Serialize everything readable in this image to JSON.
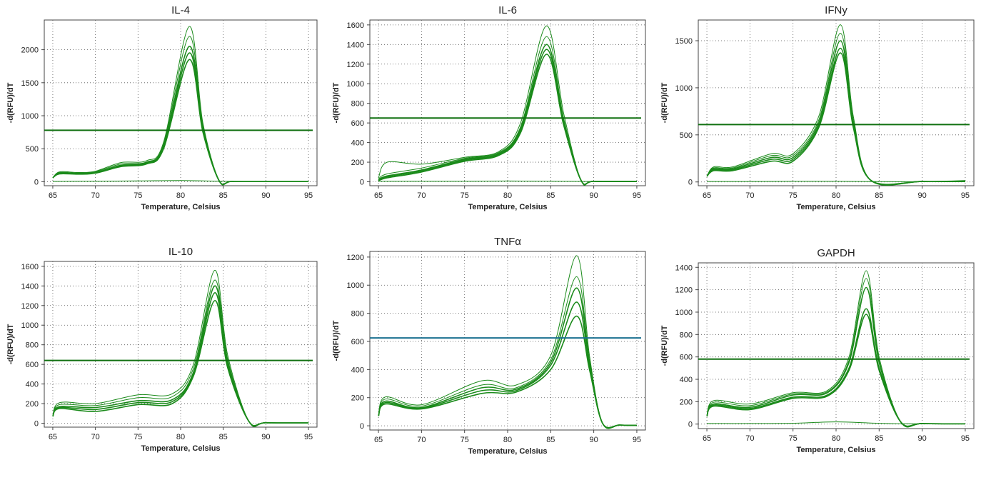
{
  "chart_data": [
    {
      "type": "line",
      "title": "IL-4",
      "xlabel": "Temperature, Celsius",
      "ylabel": "-d(RFU)/dT",
      "xlim": [
        64,
        96
      ],
      "ylim": [
        -60,
        2450
      ],
      "xticks": [
        65,
        70,
        75,
        80,
        85,
        90,
        95
      ],
      "yticks": [
        0,
        500,
        1000,
        1500,
        2000
      ],
      "grid": true,
      "threshold": {
        "value": 780,
        "color": "#107010"
      },
      "line_color": "#1a8a1a",
      "baseline_trace": {
        "x": [
          65,
          70,
          75,
          80,
          85,
          90,
          95
        ],
        "y": [
          5,
          8,
          12,
          18,
          8,
          3,
          2
        ]
      },
      "series": [
        {
          "peak_x": 81.0,
          "values": [
            60,
            150,
            140,
            160,
            290,
            320,
            600,
            2350,
            900,
            20,
            5,
            3,
            3
          ]
        },
        {
          "peak_x": 81.0,
          "values": [
            60,
            140,
            130,
            150,
            270,
            300,
            570,
            2200,
            860,
            20,
            5,
            3,
            3
          ]
        },
        {
          "peak_x": 81.0,
          "values": [
            60,
            130,
            125,
            140,
            250,
            290,
            540,
            2050,
            820,
            20,
            5,
            3,
            3
          ]
        },
        {
          "peak_x": 81.0,
          "values": [
            60,
            125,
            120,
            135,
            240,
            280,
            520,
            1950,
            790,
            20,
            5,
            3,
            3
          ]
        },
        {
          "peak_x": 81.0,
          "values": [
            60,
            120,
            115,
            130,
            230,
            270,
            500,
            1850,
            760,
            20,
            5,
            3,
            3
          ]
        }
      ],
      "x_points": [
        65,
        65.8,
        68,
        70,
        73,
        76,
        78,
        81,
        82.6,
        84.5,
        86,
        90,
        95
      ]
    },
    {
      "type": "line",
      "title": "IL-6",
      "xlabel": "Temperature, Celsius",
      "ylabel": "-d(RFU)/dT",
      "xlim": [
        64,
        96
      ],
      "ylim": [
        -40,
        1650
      ],
      "xticks": [
        65,
        70,
        75,
        80,
        85,
        90,
        95
      ],
      "yticks": [
        0,
        200,
        400,
        600,
        800,
        1000,
        1200,
        1400,
        1600
      ],
      "grid": true,
      "threshold": {
        "value": 650,
        "color": "#107010"
      },
      "line_color": "#1a8a1a",
      "baseline_trace": {
        "x": [
          65,
          70,
          75,
          80,
          85,
          90,
          95
        ],
        "y": [
          5,
          5,
          6,
          8,
          6,
          3,
          2
        ]
      },
      "series": [
        {
          "peak_x": 84.5,
          "values": [
            40,
            200,
            180,
            250,
            310,
            600,
            1590,
            700,
            20,
            5,
            3
          ]
        },
        {
          "peak_x": 84.5,
          "values": [
            30,
            80,
            140,
            240,
            300,
            560,
            1480,
            650,
            20,
            5,
            3
          ]
        },
        {
          "peak_x": 84.5,
          "values": [
            20,
            60,
            120,
            230,
            290,
            540,
            1400,
            620,
            20,
            5,
            3
          ]
        },
        {
          "peak_x": 84.5,
          "values": [
            15,
            50,
            110,
            220,
            280,
            520,
            1350,
            600,
            20,
            5,
            3
          ]
        },
        {
          "peak_x": 84.5,
          "values": [
            10,
            40,
            100,
            210,
            270,
            500,
            1300,
            580,
            20,
            5,
            3
          ]
        }
      ],
      "x_points": [
        65,
        66,
        70,
        75,
        79,
        81.5,
        84.5,
        86.5,
        88.5,
        90,
        95
      ]
    },
    {
      "type": "line",
      "title": "IFNy",
      "xlabel": "Temperature, Celsius",
      "ylabel": "-d(RFU)/dT",
      "xlim": [
        64,
        96
      ],
      "ylim": [
        -40,
        1720
      ],
      "xticks": [
        65,
        70,
        75,
        80,
        85,
        90,
        95
      ],
      "yticks": [
        0,
        500,
        1000,
        1500
      ],
      "grid": true,
      "threshold": {
        "value": 610,
        "color": "#107010"
      },
      "line_color": "#1a8a1a",
      "baseline_trace": {
        "x": [
          65,
          70,
          75,
          80,
          85,
          90,
          95
        ],
        "y": [
          5,
          5,
          6,
          6,
          4,
          3,
          10
        ]
      },
      "series": [
        {
          "peak_x": 80.5,
          "values": [
            60,
            160,
            160,
            300,
            300,
            700,
            1670,
            700,
            20,
            5,
            15
          ]
        },
        {
          "peak_x": 80.5,
          "values": [
            60,
            150,
            150,
            280,
            280,
            660,
            1580,
            660,
            20,
            5,
            10
          ]
        },
        {
          "peak_x": 80.5,
          "values": [
            60,
            140,
            140,
            260,
            260,
            630,
            1500,
            630,
            20,
            5,
            8
          ]
        },
        {
          "peak_x": 80.5,
          "values": [
            60,
            130,
            130,
            240,
            240,
            600,
            1420,
            600,
            20,
            5,
            5
          ]
        },
        {
          "peak_x": 80.5,
          "values": [
            60,
            120,
            120,
            220,
            220,
            580,
            1370,
            580,
            20,
            5,
            5
          ]
        }
      ],
      "x_points": [
        65,
        65.8,
        68,
        72.5,
        75,
        78,
        80.5,
        82,
        84,
        90,
        95
      ]
    },
    {
      "type": "line",
      "title": "IL-10",
      "xlabel": "Temperature, Celsius",
      "ylabel": "-d(RFU)/dT",
      "xlim": [
        64,
        96
      ],
      "ylim": [
        -40,
        1650
      ],
      "xticks": [
        65,
        70,
        75,
        80,
        85,
        90,
        95
      ],
      "yticks": [
        0,
        200,
        400,
        600,
        800,
        1000,
        1200,
        1400,
        1600
      ],
      "grid": true,
      "threshold": {
        "value": 640,
        "color": "#107010"
      },
      "line_color": "#1a8a1a",
      "baseline_trace": null,
      "series": [
        {
          "peak_x": 84.0,
          "values": [
            70,
            210,
            200,
            290,
            300,
            600,
            1560,
            700,
            20,
            5,
            3
          ]
        },
        {
          "peak_x": 84.0,
          "values": [
            70,
            190,
            180,
            260,
            270,
            560,
            1460,
            660,
            20,
            5,
            3
          ]
        },
        {
          "peak_x": 84.0,
          "values": [
            70,
            170,
            160,
            230,
            240,
            520,
            1400,
            630,
            20,
            5,
            3
          ]
        },
        {
          "peak_x": 84.0,
          "values": [
            70,
            160,
            140,
            210,
            220,
            500,
            1330,
            600,
            20,
            5,
            3
          ]
        },
        {
          "peak_x": 84.0,
          "values": [
            70,
            150,
            120,
            190,
            200,
            480,
            1250,
            570,
            20,
            5,
            3
          ]
        }
      ],
      "x_points": [
        65,
        65.8,
        70,
        75,
        79,
        81.5,
        84,
        85.5,
        88,
        90,
        95
      ]
    },
    {
      "type": "line",
      "title": "TNFα",
      "xlabel": "Temperature, Celsius",
      "ylabel": "-d(RFU)/dT",
      "xlim": [
        64,
        96
      ],
      "ylim": [
        -30,
        1240
      ],
      "xticks": [
        65,
        70,
        75,
        80,
        85,
        90,
        95
      ],
      "yticks": [
        0,
        200,
        400,
        600,
        800,
        1000,
        1200
      ],
      "grid": true,
      "threshold": {
        "value": 625,
        "color": "#1a7090"
      },
      "line_color": "#1a8a1a",
      "baseline_trace": null,
      "series": [
        {
          "peak_x": 88.0,
          "values": [
            70,
            205,
            150,
            320,
            290,
            500,
            1210,
            500,
            20,
            5,
            3
          ]
        },
        {
          "peak_x": 88.0,
          "values": [
            70,
            190,
            140,
            290,
            270,
            470,
            1060,
            470,
            20,
            5,
            3
          ]
        },
        {
          "peak_x": 88.0,
          "values": [
            70,
            175,
            130,
            270,
            260,
            450,
            980,
            450,
            20,
            5,
            3
          ]
        },
        {
          "peak_x": 88.0,
          "values": [
            70,
            165,
            125,
            250,
            250,
            430,
            880,
            430,
            20,
            5,
            3
          ]
        },
        {
          "peak_x": 88.0,
          "values": [
            70,
            155,
            120,
            230,
            240,
            400,
            780,
            400,
            20,
            5,
            3
          ]
        }
      ],
      "x_points": [
        65,
        65.8,
        70,
        77,
        81,
        85,
        88,
        89.5,
        91,
        93,
        95
      ]
    },
    {
      "type": "line",
      "title": "GAPDH",
      "xlabel": "Temperature, Celsius",
      "ylabel": "-d(RFU)/dT",
      "xlim": [
        64,
        96
      ],
      "ylim": [
        -40,
        1440
      ],
      "xticks": [
        65,
        70,
        75,
        80,
        85,
        90,
        95
      ],
      "yticks": [
        0,
        200,
        400,
        600,
        800,
        1000,
        1200,
        1400
      ],
      "grid": true,
      "threshold": {
        "value": 580,
        "color": "#107010"
      },
      "line_color": "#1a8a1a",
      "baseline_trace": {
        "x": [
          65,
          70,
          75,
          80,
          84,
          88,
          95
        ],
        "y": [
          5,
          5,
          8,
          20,
          10,
          3,
          2
        ]
      },
      "series": [
        {
          "peak_x": 83.5,
          "values": [
            70,
            210,
            180,
            280,
            300,
            600,
            1370,
            600,
            20,
            5,
            3
          ]
        },
        {
          "peak_x": 83.5,
          "values": [
            70,
            195,
            165,
            270,
            290,
            570,
            1300,
            570,
            20,
            5,
            3
          ]
        },
        {
          "peak_x": 83.5,
          "values": [
            70,
            180,
            150,
            260,
            280,
            550,
            1220,
            550,
            20,
            5,
            3
          ]
        },
        {
          "peak_x": 83.5,
          "values": [
            70,
            170,
            140,
            240,
            260,
            500,
            1030,
            500,
            20,
            5,
            3
          ]
        },
        {
          "peak_x": 83.5,
          "values": [
            70,
            160,
            130,
            230,
            250,
            480,
            980,
            480,
            20,
            5,
            3
          ]
        }
      ],
      "x_points": [
        65,
        65.8,
        70,
        75,
        79,
        81.5,
        83.5,
        85,
        87.5,
        90,
        95
      ]
    }
  ]
}
